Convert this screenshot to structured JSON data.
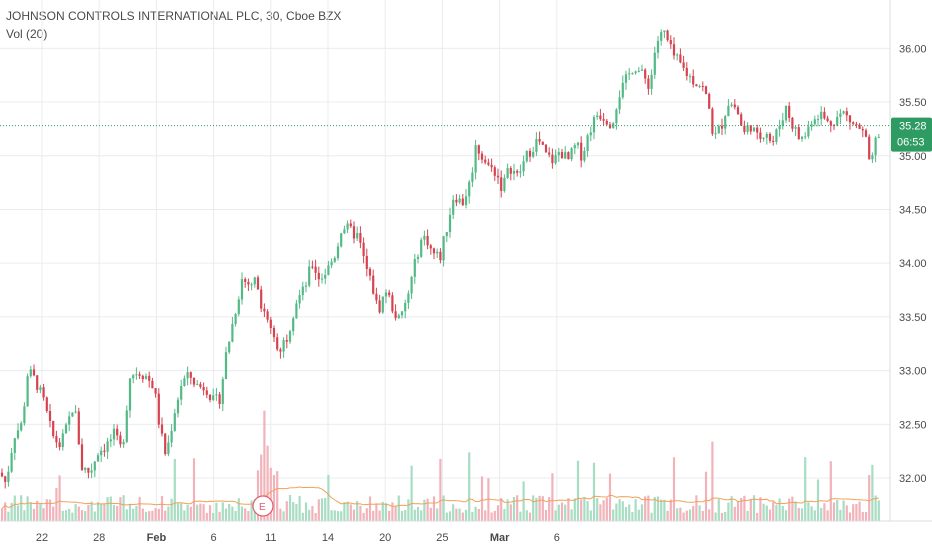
{
  "legend": {
    "title": "JOHNSON CONTROLS INTERNATIONAL PLC, 30, Cboe BZX",
    "volume": "Vol (20)"
  },
  "price_badge": {
    "price": "35.28",
    "countdown": "06:53"
  },
  "event_marker": {
    "label": "E"
  },
  "colors": {
    "up": "#53b987",
    "down": "#d6424e",
    "up_volume": "#a8dcc3",
    "down_volume": "#f1b3b9",
    "volume_ma": "#f0a15a",
    "badge": "#2e9b62",
    "grid": "#e9ecef",
    "current_line": "#2e9b62"
  },
  "chart_data": {
    "type": "candlestick",
    "y_ticks": [
      "32.00",
      "32.50",
      "33.00",
      "33.50",
      "34.00",
      "34.50",
      "35.00",
      "35.50",
      "36.00"
    ],
    "y_values": [
      32.0,
      32.5,
      33.0,
      33.5,
      34.0,
      34.5,
      35.0,
      35.5,
      36.0
    ],
    "x_ticks": [
      {
        "label": "22",
        "bold": false
      },
      {
        "label": "28",
        "bold": false
      },
      {
        "label": "Feb",
        "bold": true
      },
      {
        "label": "6",
        "bold": false
      },
      {
        "label": "11",
        "bold": false
      },
      {
        "label": "14",
        "bold": false
      },
      {
        "label": "20",
        "bold": false
      },
      {
        "label": "25",
        "bold": false
      },
      {
        "label": "Mar",
        "bold": true
      },
      {
        "label": "6",
        "bold": false
      }
    ],
    "ylim": [
      31.6,
      36.45
    ],
    "current_price": 35.28,
    "close_path": [
      [
        0,
        32.05
      ],
      [
        6,
        31.95
      ],
      [
        14,
        32.4
      ],
      [
        22,
        32.5
      ],
      [
        28,
        33.0
      ],
      [
        36,
        32.9
      ],
      [
        44,
        32.7
      ],
      [
        52,
        32.4
      ],
      [
        60,
        32.3
      ],
      [
        66,
        32.45
      ],
      [
        74,
        32.7
      ],
      [
        82,
        32.1
      ],
      [
        90,
        32.05
      ],
      [
        98,
        32.25
      ],
      [
        106,
        32.3
      ],
      [
        114,
        32.4
      ],
      [
        122,
        32.25
      ],
      [
        130,
        32.95
      ],
      [
        138,
        33.0
      ],
      [
        146,
        32.95
      ],
      [
        154,
        32.85
      ],
      [
        160,
        32.45
      ],
      [
        166,
        32.2
      ],
      [
        174,
        32.6
      ],
      [
        182,
        32.9
      ],
      [
        190,
        32.95
      ],
      [
        198,
        32.85
      ],
      [
        206,
        32.85
      ],
      [
        214,
        32.7
      ],
      [
        220,
        32.75
      ],
      [
        226,
        33.15
      ],
      [
        234,
        33.5
      ],
      [
        242,
        33.85
      ],
      [
        250,
        33.8
      ],
      [
        256,
        33.85
      ],
      [
        262,
        33.6
      ],
      [
        268,
        33.5
      ],
      [
        274,
        33.3
      ],
      [
        280,
        33.2
      ],
      [
        288,
        33.35
      ],
      [
        296,
        33.65
      ],
      [
        304,
        33.75
      ],
      [
        312,
        34.0
      ],
      [
        320,
        33.85
      ],
      [
        328,
        33.95
      ],
      [
        336,
        34.1
      ],
      [
        342,
        34.35
      ],
      [
        350,
        34.3
      ],
      [
        358,
        34.25
      ],
      [
        366,
        33.95
      ],
      [
        372,
        33.8
      ],
      [
        378,
        33.55
      ],
      [
        386,
        33.75
      ],
      [
        394,
        33.55
      ],
      [
        400,
        33.45
      ],
      [
        408,
        33.7
      ],
      [
        414,
        33.95
      ],
      [
        420,
        34.2
      ],
      [
        426,
        34.25
      ],
      [
        432,
        34.1
      ],
      [
        440,
        34.05
      ],
      [
        446,
        34.3
      ],
      [
        454,
        34.65
      ],
      [
        462,
        34.55
      ],
      [
        470,
        34.75
      ],
      [
        476,
        35.1
      ],
      [
        482,
        35.0
      ],
      [
        488,
        34.9
      ],
      [
        496,
        34.85
      ],
      [
        502,
        34.7
      ],
      [
        510,
        34.9
      ],
      [
        518,
        34.8
      ],
      [
        524,
        34.95
      ],
      [
        530,
        35.05
      ],
      [
        538,
        35.15
      ],
      [
        546,
        35.0
      ],
      [
        554,
        34.95
      ],
      [
        560,
        35.05
      ],
      [
        568,
        34.95
      ],
      [
        576,
        35.1
      ],
      [
        582,
        35.0
      ],
      [
        590,
        35.25
      ],
      [
        598,
        35.4
      ],
      [
        606,
        35.35
      ],
      [
        612,
        35.3
      ],
      [
        618,
        35.55
      ],
      [
        626,
        35.7
      ],
      [
        634,
        35.85
      ],
      [
        642,
        35.75
      ],
      [
        650,
        35.65
      ],
      [
        656,
        36.05
      ],
      [
        664,
        36.15
      ],
      [
        672,
        35.95
      ],
      [
        680,
        35.85
      ],
      [
        688,
        35.75
      ],
      [
        694,
        35.7
      ],
      [
        702,
        35.65
      ],
      [
        708,
        35.5
      ],
      [
        714,
        35.15
      ],
      [
        722,
        35.3
      ],
      [
        728,
        35.5
      ],
      [
        736,
        35.45
      ],
      [
        744,
        35.2
      ],
      [
        750,
        35.3
      ],
      [
        758,
        35.15
      ],
      [
        766,
        35.25
      ],
      [
        772,
        35.1
      ],
      [
        780,
        35.3
      ],
      [
        786,
        35.45
      ],
      [
        792,
        35.3
      ],
      [
        800,
        35.15
      ],
      [
        806,
        35.2
      ],
      [
        812,
        35.35
      ],
      [
        820,
        35.4
      ],
      [
        828,
        35.3
      ],
      [
        836,
        35.35
      ],
      [
        844,
        35.4
      ],
      [
        852,
        35.3
      ],
      [
        860,
        35.25
      ],
      [
        866,
        35.15
      ],
      [
        870,
        34.85
      ],
      [
        876,
        35.15
      ],
      [
        882,
        35.28
      ]
    ]
  }
}
